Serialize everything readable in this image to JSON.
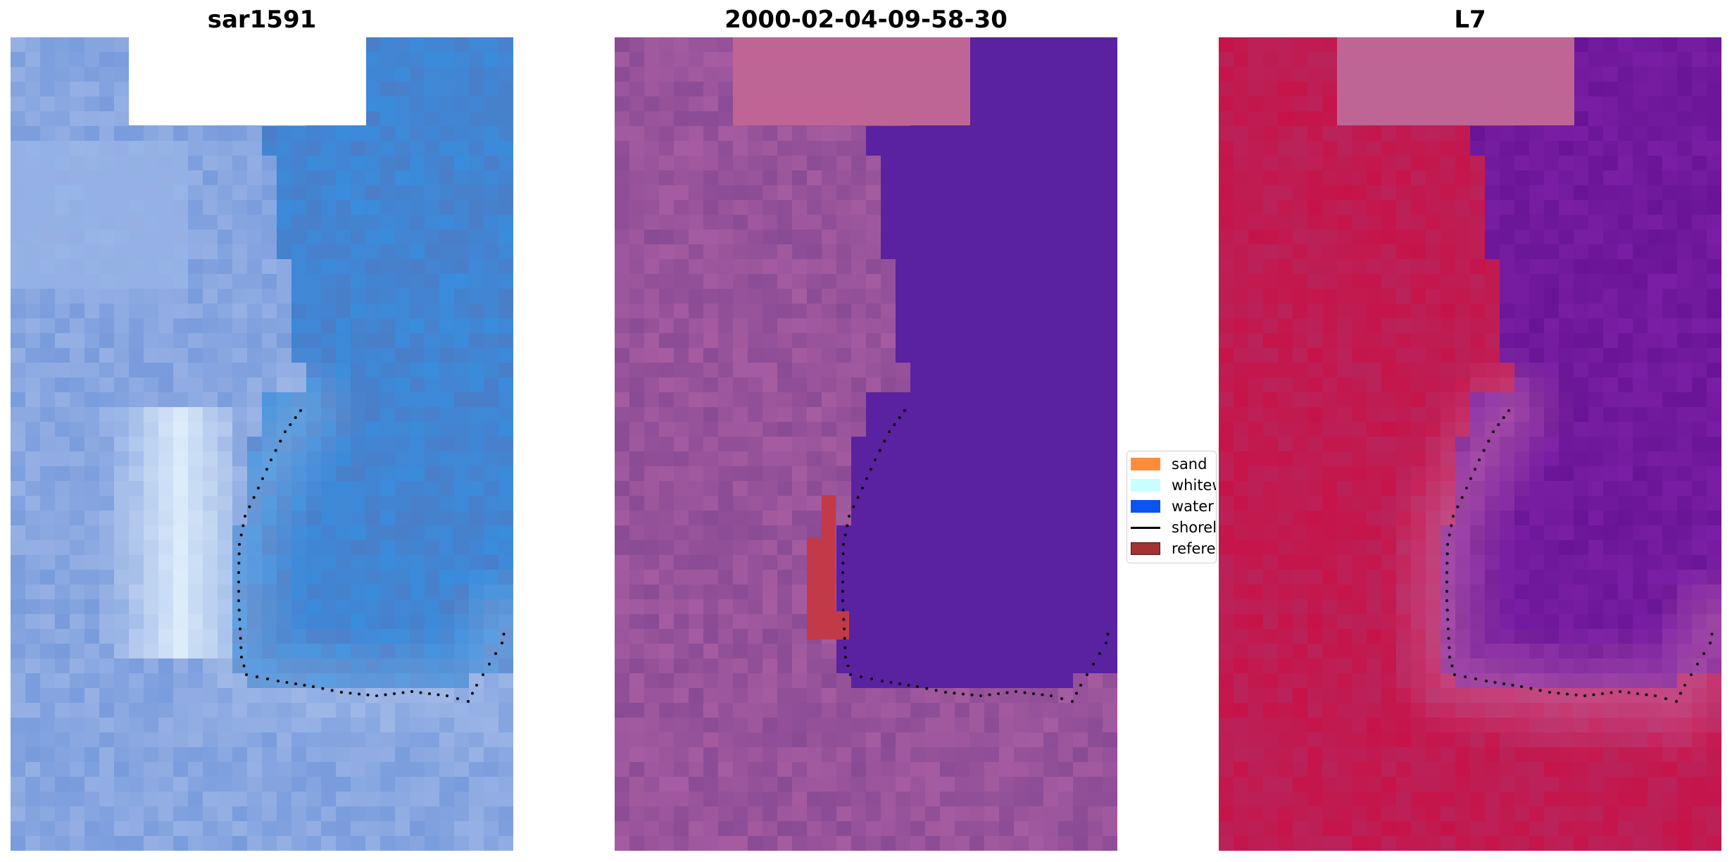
{
  "panels": [
    {
      "title": "sar1591",
      "kind": "rgb"
    },
    {
      "title": "2000-02-04-09-58-30",
      "kind": "classification"
    },
    {
      "title": "L7",
      "kind": "index"
    }
  ],
  "legend": {
    "items": [
      {
        "label": "sand",
        "color": "#ff8c3a",
        "type": "patch"
      },
      {
        "label": "whitew",
        "color": "#c8ffff",
        "type": "patch"
      },
      {
        "label": "water",
        "color": "#0a55f0",
        "type": "patch"
      },
      {
        "label": "shorel",
        "color": "#000000",
        "type": "line"
      },
      {
        "label": "referen",
        "color": "#a33232",
        "type": "patch"
      }
    ]
  },
  "colors": {
    "nodata": "#ffffff",
    "shoreline_points": "#000000",
    "rgb_water": "#3c8fdf",
    "rgb_land": "#9cb6e4",
    "class_water": "#5a22a0",
    "class_land": "#8a4b95",
    "class_box": "#bf6596",
    "class_reference": "#c23a48",
    "index_land": "#c6144a",
    "index_water": "#7a1fa5"
  }
}
